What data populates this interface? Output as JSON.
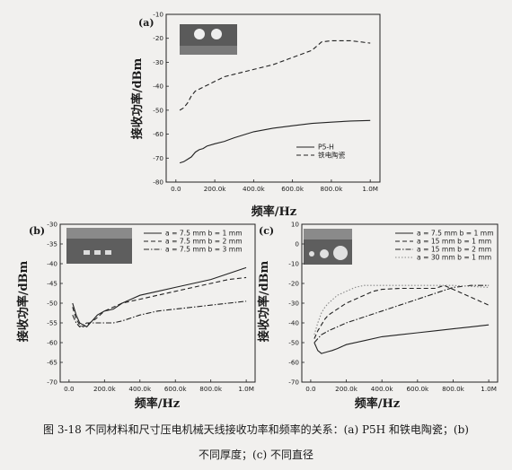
{
  "caption": {
    "line1": "图 3-18 不同材料和尺寸压电机械天线接收功率和频率的关系：(a) P5H 和铁电陶瓷；(b)",
    "line2": "不同厚度；(c) 不同直径"
  },
  "chart_data": [
    {
      "type": "line",
      "panel": "(a)",
      "xlabel": "频率/Hz",
      "ylabel": "接收功率/dBm",
      "xlim": [
        -50,
        1050
      ],
      "ylim": [
        -80,
        -10
      ],
      "xticks": [
        "0.0",
        "200.0k",
        "400.0k",
        "600.0k",
        "800.0k",
        "1.0M"
      ],
      "xtick_values": [
        0,
        200,
        400,
        600,
        800,
        1000
      ],
      "yticks": [
        -80,
        -70,
        -60,
        -50,
        -40,
        -30,
        -20,
        -10
      ],
      "legend_position": "bottom-right",
      "series": [
        {
          "name": "P5-H",
          "dash": "solid",
          "x": [
            20,
            40,
            60,
            80,
            100,
            120,
            140,
            160,
            200,
            250,
            300,
            400,
            500,
            600,
            700,
            800,
            900,
            1000
          ],
          "y": [
            -72,
            -71.5,
            -70.5,
            -69.5,
            -67.5,
            -66.5,
            -66,
            -65,
            -64,
            -63,
            -61.5,
            -59,
            -57.5,
            -56.5,
            -55.5,
            -55,
            -54.5,
            -54.3
          ]
        },
        {
          "name": "铁电陶瓷",
          "dash": "dashed",
          "x": [
            20,
            40,
            60,
            80,
            100,
            150,
            200,
            250,
            300,
            400,
            500,
            600,
            700,
            750,
            800,
            850,
            900,
            950,
            1000
          ],
          "y": [
            -50,
            -49,
            -47,
            -44,
            -42,
            -40,
            -38,
            -36,
            -35,
            -33,
            -31,
            -28,
            -25,
            -21.5,
            -21,
            -21,
            -21,
            -21.5,
            -22
          ]
        }
      ]
    },
    {
      "type": "line",
      "panel": "(b)",
      "xlabel": "频率/Hz",
      "ylabel": "接收功率/dBm",
      "xlim": [
        -50,
        1050
      ],
      "ylim": [
        -70,
        -30
      ],
      "xticks": [
        "0.0",
        "200.0k",
        "400.0k",
        "600.0k",
        "800.0k",
        "1.0M"
      ],
      "xtick_values": [
        0,
        200,
        400,
        600,
        800,
        1000
      ],
      "yticks": [
        -70,
        -65,
        -60,
        -55,
        -50,
        -45,
        -40,
        -35,
        -30
      ],
      "legend_position": "top-right",
      "series": [
        {
          "name": "a = 7.5 mm b = 1 mm",
          "dash": "solid",
          "x": [
            20,
            40,
            60,
            80,
            100,
            120,
            140,
            160,
            200,
            250,
            300,
            350,
            400,
            500,
            600,
            700,
            800,
            900,
            1000
          ],
          "y": [
            -50,
            -53,
            -55,
            -55.5,
            -56,
            -55,
            -54,
            -53,
            -52,
            -51.5,
            -50,
            -49,
            -48,
            -47,
            -46,
            -45,
            -44,
            -42.5,
            -41
          ]
        },
        {
          "name": "a = 7.5 mm b = 2 mm",
          "dash": "dashed",
          "x": [
            20,
            40,
            60,
            80,
            100,
            150,
            200,
            300,
            400,
            500,
            600,
            700,
            800,
            900,
            1000
          ],
          "y": [
            -51,
            -54,
            -55.5,
            -56,
            -55.5,
            -54,
            -52,
            -50,
            -49,
            -48,
            -47,
            -46,
            -45,
            -44,
            -43.5
          ]
        },
        {
          "name": "a = 7.5 mm b = 3 mm",
          "dash": "dashdot",
          "x": [
            20,
            40,
            60,
            80,
            100,
            150,
            200,
            250,
            300,
            400,
            500,
            600,
            700,
            800,
            900,
            1000
          ],
          "y": [
            -53,
            -55,
            -56,
            -55.5,
            -55,
            -55,
            -55,
            -55,
            -54.5,
            -53,
            -52,
            -51.5,
            -51,
            -50.5,
            -50,
            -49.5
          ]
        }
      ]
    },
    {
      "type": "line",
      "panel": "(c)",
      "xlabel": "频率/Hz",
      "ylabel": "接收功率/dBm",
      "xlim": [
        -50,
        1050
      ],
      "ylim": [
        -70,
        10
      ],
      "xticks": [
        "0.0",
        "200.0k",
        "400.0k",
        "600.0k",
        "800.0k",
        "1.0M"
      ],
      "xtick_values": [
        0,
        200,
        400,
        600,
        800,
        1000
      ],
      "yticks": [
        -70,
        -60,
        -50,
        -40,
        -30,
        -20,
        -10,
        0,
        10
      ],
      "legend_position": "top-right",
      "series": [
        {
          "name": "a = 7.5 mm b = 1 mm",
          "dash": "solid",
          "x": [
            20,
            40,
            60,
            80,
            100,
            120,
            150,
            200,
            300,
            400,
            500,
            600,
            700,
            800,
            900,
            1000
          ],
          "y": [
            -50,
            -54,
            -55.5,
            -55,
            -54.5,
            -54,
            -53,
            -51,
            -49,
            -47,
            -46,
            -45,
            -44,
            -43,
            -42,
            -41
          ]
        },
        {
          "name": "a = 15 mm b = 1 mm",
          "dash": "dashed",
          "x": [
            20,
            40,
            60,
            80,
            100,
            150,
            200,
            250,
            300,
            350,
            400,
            500,
            600,
            700,
            750,
            800,
            900,
            1000
          ],
          "y": [
            -48,
            -44,
            -41,
            -38,
            -36,
            -33,
            -30,
            -28,
            -26,
            -24,
            -23,
            -22.5,
            -22.5,
            -22.5,
            -21,
            -23,
            -27,
            -31
          ]
        },
        {
          "name": "a = 15 mm b = 2 mm",
          "dash": "dashdot",
          "x": [
            20,
            40,
            60,
            80,
            100,
            150,
            200,
            300,
            400,
            500,
            600,
            700,
            800,
            900,
            1000
          ],
          "y": [
            -50,
            -48,
            -46,
            -45,
            -44,
            -42,
            -40,
            -37,
            -34,
            -31,
            -28,
            -25,
            -22,
            -21,
            -21
          ]
        },
        {
          "name": "a = 30 mm b = 1 mm",
          "dash": "dotted",
          "x": [
            20,
            40,
            60,
            80,
            100,
            150,
            200,
            250,
            300,
            400,
            500,
            600,
            700,
            800,
            900,
            1000
          ],
          "y": [
            -46,
            -40,
            -35,
            -32,
            -30,
            -26,
            -24,
            -22,
            -21,
            -21,
            -21,
            -21,
            -21,
            -21,
            -21.5,
            -22
          ]
        }
      ]
    }
  ]
}
